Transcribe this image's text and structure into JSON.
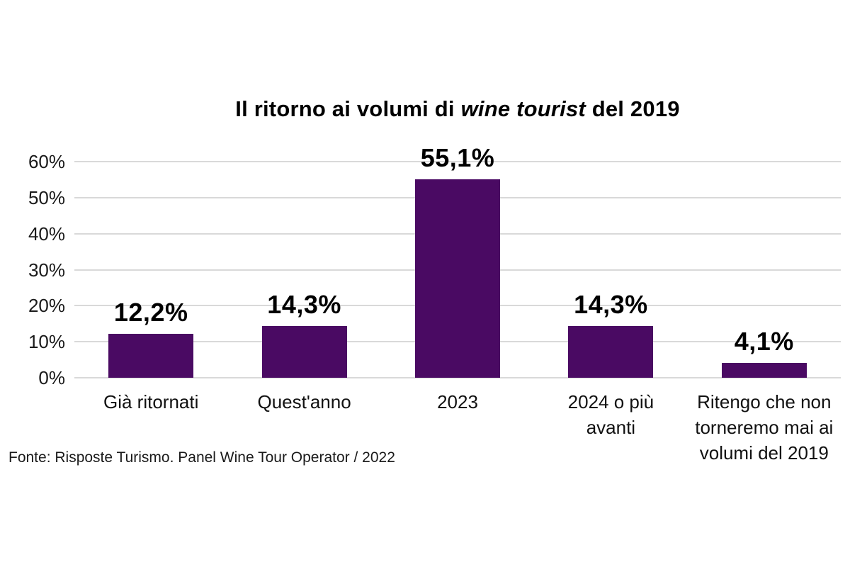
{
  "title": {
    "prefix": "Il ritorno ai volumi di ",
    "italic": "wine tourist",
    "suffix": " del 2019"
  },
  "source": "Fonte: Risposte Turismo. Panel Wine Tour Operator / 2022",
  "colors": {
    "bar": "#4a0a63",
    "gridline": "#d9d9d9",
    "text": "#000000"
  },
  "chart_data": {
    "type": "bar",
    "title": "Il ritorno ai volumi di wine tourist del 2019",
    "categories": [
      "Già ritornati",
      "Quest'anno",
      "2023",
      "2024 o più avanti",
      "Ritengo che non torneremo mai ai volumi del 2019"
    ],
    "category_display": [
      "Già ritornati",
      "Quest'anno",
      "2023",
      "2024 o più\navanti",
      "Ritengo che non\ntorneremo mai ai\nvolumi del 2019"
    ],
    "values": [
      12.2,
      14.3,
      55.1,
      14.3,
      4.1
    ],
    "value_labels": [
      "12,2%",
      "14,3%",
      "55,1%",
      "14,3%",
      "4,1%"
    ],
    "xlabel": "",
    "ylabel": "",
    "ylim": [
      0,
      60
    ],
    "y_ticks": [
      0,
      10,
      20,
      30,
      40,
      50,
      60
    ],
    "y_tick_labels": [
      "0%",
      "10%",
      "20%",
      "30%",
      "40%",
      "50%",
      "60%"
    ],
    "grid": "horizontal",
    "legend": "none",
    "bar_color": "#4a0a63"
  }
}
